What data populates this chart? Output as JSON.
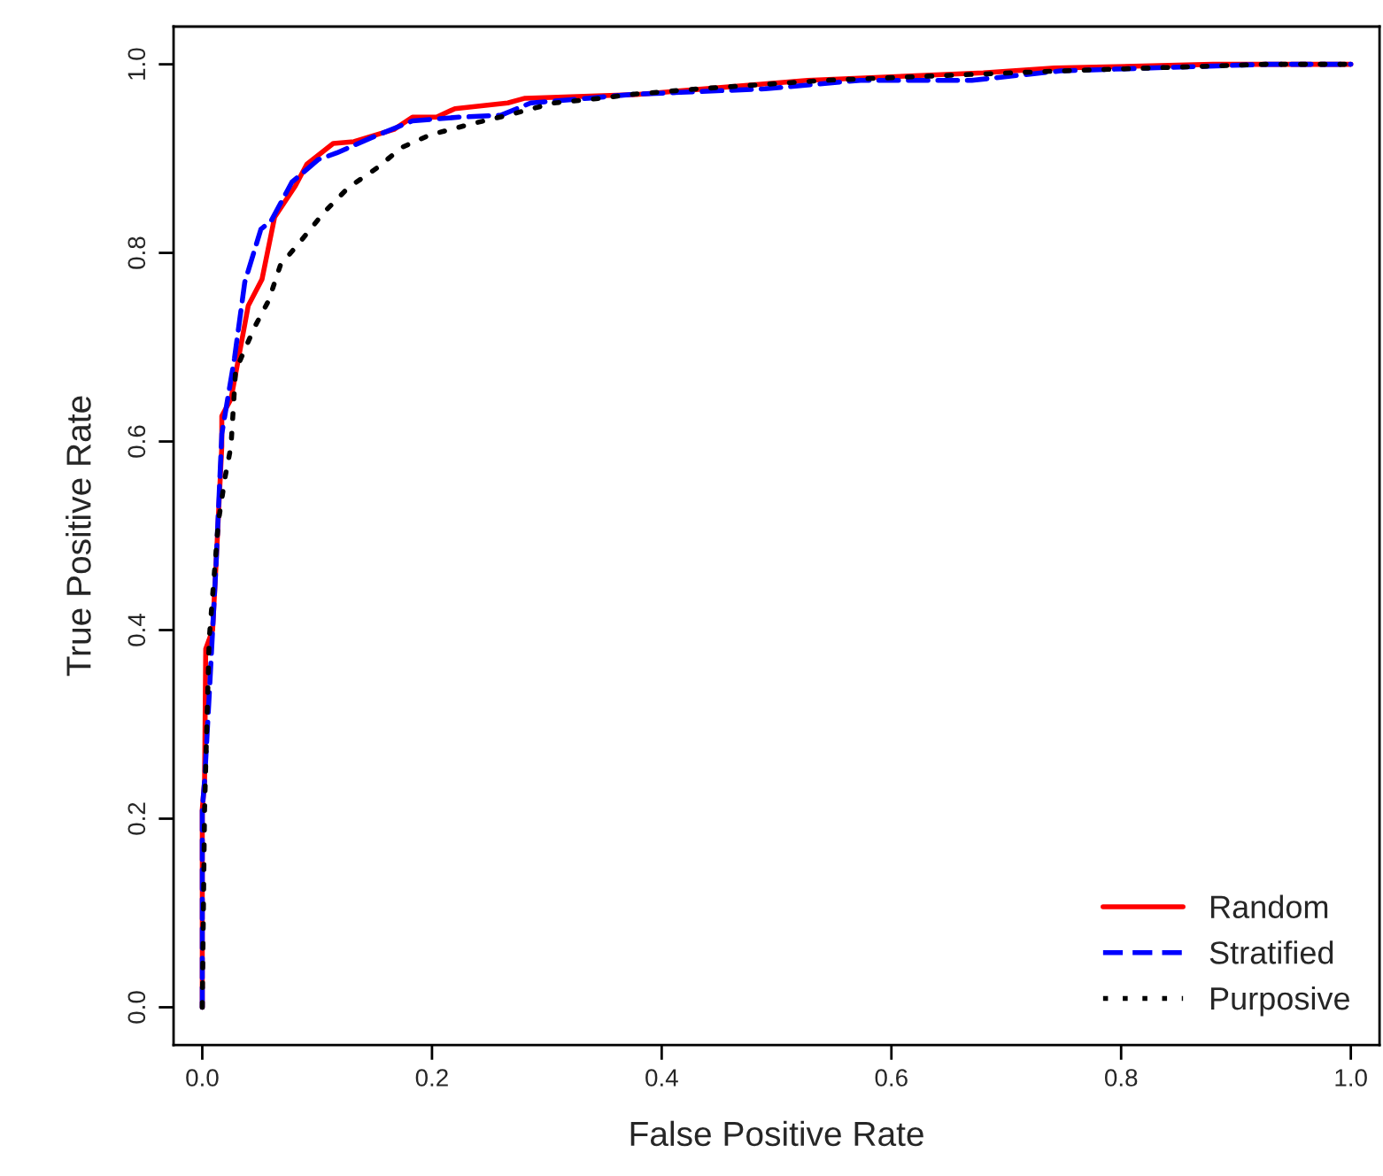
{
  "chart_data": {
    "type": "line",
    "xlabel": "False Positive Rate",
    "ylabel": "True Positive Rate",
    "xlim": [
      -0.025,
      1.025
    ],
    "ylim": [
      -0.04,
      1.04
    ],
    "xticks": [
      {
        "value": 0,
        "label": "0.0"
      },
      {
        "value": 0.2,
        "label": "0.2"
      },
      {
        "value": 0.4,
        "label": "0.4"
      },
      {
        "value": 0.6,
        "label": "0.6"
      },
      {
        "value": 0.8,
        "label": "0.8"
      },
      {
        "value": 1,
        "label": "1.0"
      }
    ],
    "yticks": [
      {
        "value": 0,
        "label": "0.0"
      },
      {
        "value": 0.2,
        "label": "0.2"
      },
      {
        "value": 0.4,
        "label": "0.4"
      },
      {
        "value": 0.6,
        "label": "0.6"
      },
      {
        "value": 0.8,
        "label": "0.8"
      },
      {
        "value": 1,
        "label": "1.0"
      }
    ],
    "grid": false,
    "legend": "bottom right",
    "marker": "none",
    "series": [
      {
        "name": "Random",
        "color": "#ff0000",
        "line_style": "solid",
        "x": [
          0,
          0,
          0.002,
          0.003,
          0.009,
          0.012,
          0.017,
          0.017,
          0.025,
          0.04,
          0.052,
          0.063,
          0.081,
          0.091,
          0.114,
          0.132,
          0.167,
          0.183,
          0.204,
          0.22,
          0.266,
          0.281,
          0.378,
          0.527,
          0.68,
          0.742,
          0.88,
          1.0
        ],
        "values": [
          0,
          0.21,
          0.24,
          0.38,
          0.4,
          0.47,
          0.595,
          0.627,
          0.645,
          0.744,
          0.772,
          0.838,
          0.871,
          0.894,
          0.916,
          0.918,
          0.931,
          0.944,
          0.944,
          0.953,
          0.959,
          0.964,
          0.968,
          0.983,
          0.991,
          0.996,
          1.0,
          1.0
        ]
      },
      {
        "name": "Stratified",
        "color": "#0000ff",
        "line_style": "dashed",
        "x": [
          0,
          0,
          0.002,
          0.006,
          0.012,
          0.017,
          0.028,
          0.037,
          0.051,
          0.06,
          0.078,
          0.101,
          0.117,
          0.147,
          0.183,
          0.224,
          0.26,
          0.286,
          0.336,
          0.373,
          0.49,
          0.573,
          0.67,
          0.747,
          0.926,
          1.0
        ],
        "values": [
          0,
          0.21,
          0.24,
          0.33,
          0.47,
          0.608,
          0.688,
          0.769,
          0.825,
          0.834,
          0.875,
          0.899,
          0.906,
          0.922,
          0.94,
          0.944,
          0.946,
          0.959,
          0.964,
          0.968,
          0.974,
          0.983,
          0.983,
          0.993,
          1.0,
          1.0
        ]
      },
      {
        "name": "Purposive",
        "color": "#000000",
        "line_style": "dotted",
        "x": [
          0,
          0.002,
          0.006,
          0.014,
          0.02,
          0.025,
          0.029,
          0.045,
          0.058,
          0.068,
          0.086,
          0.106,
          0.127,
          0.152,
          0.174,
          0.198,
          0.235,
          0.266,
          0.306,
          0.347,
          0.373,
          0.432,
          0.542,
          0.747,
          0.926,
          1.0
        ],
        "values": [
          0,
          0.21,
          0.39,
          0.515,
          0.563,
          0.595,
          0.675,
          0.72,
          0.75,
          0.787,
          0.813,
          0.843,
          0.869,
          0.89,
          0.912,
          0.925,
          0.937,
          0.946,
          0.959,
          0.964,
          0.968,
          0.974,
          0.983,
          0.993,
          1.0,
          1.0
        ]
      }
    ]
  }
}
